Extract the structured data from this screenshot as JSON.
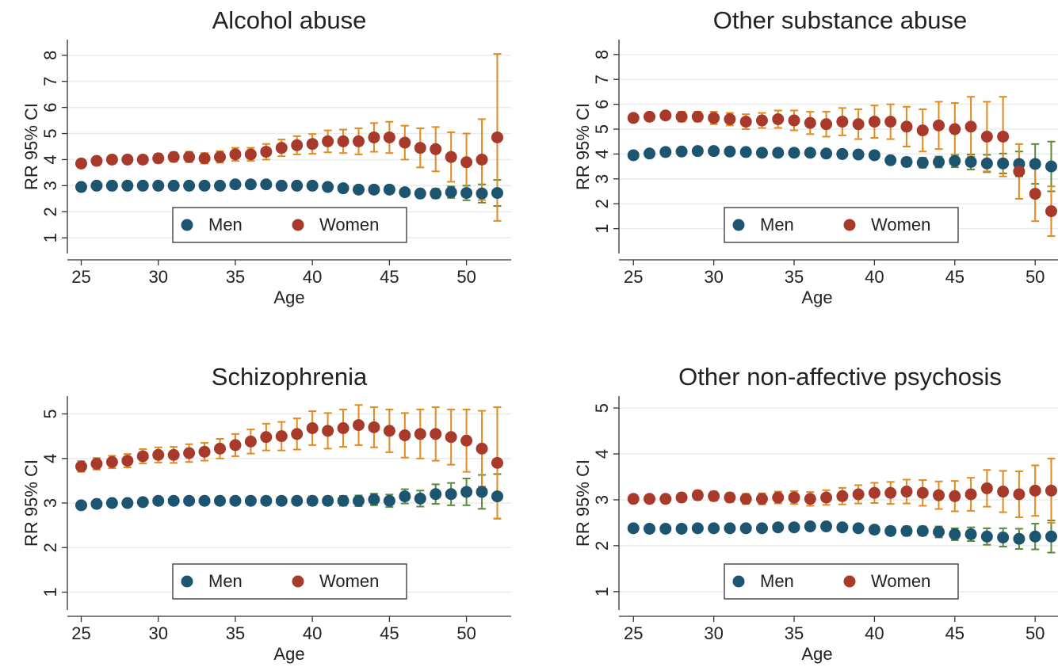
{
  "chart_data": [
    {
      "type": "errorbar",
      "title": "Alcohol abuse",
      "x_label": "Age",
      "y_label": "RR 95% CI",
      "x": [
        25,
        26,
        27,
        28,
        29,
        30,
        31,
        32,
        33,
        34,
        35,
        36,
        37,
        38,
        39,
        40,
        41,
        42,
        43,
        44,
        45,
        46,
        47,
        48,
        49,
        50,
        51,
        52
      ],
      "xlim": [
        24.1,
        52.9
      ],
      "xticks": [
        25,
        30,
        35,
        40,
        45,
        50
      ],
      "ylim": [
        0.4,
        8.6
      ],
      "yticks": [
        1,
        2,
        3,
        4,
        5,
        6,
        7,
        8
      ],
      "grid": true,
      "legend": "bottom",
      "series": [
        {
          "name": "Men",
          "color": "#1d5570",
          "error_color": "#5b8a3c",
          "values": [
            2.95,
            3.0,
            3.0,
            3.0,
            3.0,
            3.0,
            3.0,
            3.0,
            3.0,
            3.0,
            3.05,
            3.05,
            3.05,
            3.0,
            3.0,
            3.0,
            2.95,
            2.9,
            2.85,
            2.85,
            2.85,
            2.75,
            2.7,
            2.7,
            2.75,
            2.72,
            2.7,
            2.72
          ],
          "errors": [
            0.08,
            0.08,
            0.08,
            0.08,
            0.08,
            0.08,
            0.08,
            0.08,
            0.08,
            0.08,
            0.08,
            0.08,
            0.08,
            0.08,
            0.08,
            0.08,
            0.08,
            0.08,
            0.08,
            0.08,
            0.1,
            0.12,
            0.15,
            0.18,
            0.22,
            0.28,
            0.35,
            0.5
          ]
        },
        {
          "name": "Women",
          "color": "#a83a2c",
          "error_color": "#e38a1d",
          "values": [
            3.85,
            3.95,
            4.0,
            4.0,
            4.0,
            4.05,
            4.1,
            4.1,
            4.05,
            4.1,
            4.2,
            4.2,
            4.3,
            4.45,
            4.55,
            4.6,
            4.7,
            4.7,
            4.7,
            4.85,
            4.85,
            4.65,
            4.45,
            4.4,
            4.1,
            3.9,
            4.0,
            4.85
          ],
          "errors": [
            0.15,
            0.15,
            0.15,
            0.15,
            0.15,
            0.17,
            0.18,
            0.2,
            0.2,
            0.22,
            0.25,
            0.25,
            0.3,
            0.32,
            0.35,
            0.38,
            0.42,
            0.45,
            0.5,
            0.55,
            0.6,
            0.65,
            0.75,
            0.85,
            0.95,
            1.1,
            1.55,
            3.2
          ]
        }
      ]
    },
    {
      "type": "errorbar",
      "title": "Other substance abuse",
      "x_label": "Age",
      "y_label": "RR 95% CI",
      "x": [
        25,
        26,
        27,
        28,
        29,
        30,
        31,
        32,
        33,
        34,
        35,
        36,
        37,
        38,
        39,
        40,
        41,
        42,
        43,
        44,
        45,
        46,
        47,
        48,
        49,
        50,
        51
      ],
      "xlim": [
        24.1,
        52.9
      ],
      "xticks": [
        25,
        30,
        35,
        40,
        45,
        50
      ],
      "ylim": [
        0,
        8.6
      ],
      "yticks": [
        1,
        2,
        3,
        4,
        5,
        6,
        7,
        8
      ],
      "grid": true,
      "legend": "bottom",
      "series": [
        {
          "name": "Men",
          "color": "#1d5570",
          "error_color": "#5b8a3c",
          "values": [
            3.95,
            4.02,
            4.08,
            4.1,
            4.12,
            4.12,
            4.1,
            4.08,
            4.05,
            4.05,
            4.05,
            4.05,
            4.02,
            4.0,
            3.98,
            3.95,
            3.75,
            3.68,
            3.65,
            3.68,
            3.72,
            3.68,
            3.62,
            3.62,
            3.6,
            3.6,
            3.5
          ],
          "errors": [
            0.1,
            0.1,
            0.1,
            0.1,
            0.1,
            0.1,
            0.1,
            0.1,
            0.1,
            0.1,
            0.1,
            0.1,
            0.1,
            0.1,
            0.1,
            0.1,
            0.15,
            0.18,
            0.2,
            0.22,
            0.25,
            0.3,
            0.35,
            0.4,
            0.5,
            0.8,
            1.0
          ]
        },
        {
          "name": "Women",
          "color": "#a83a2c",
          "error_color": "#e38a1d",
          "values": [
            5.45,
            5.5,
            5.55,
            5.5,
            5.5,
            5.45,
            5.4,
            5.3,
            5.35,
            5.4,
            5.35,
            5.25,
            5.2,
            5.3,
            5.2,
            5.3,
            5.3,
            5.1,
            4.95,
            5.15,
            5.0,
            5.1,
            4.7,
            4.7,
            3.3,
            2.4,
            1.7
          ],
          "errors": [
            0.15,
            0.15,
            0.15,
            0.2,
            0.2,
            0.25,
            0.25,
            0.3,
            0.3,
            0.35,
            0.4,
            0.45,
            0.5,
            0.55,
            0.6,
            0.65,
            0.7,
            0.8,
            0.85,
            0.95,
            1.05,
            1.2,
            1.4,
            1.6,
            1.1,
            1.1,
            1.0
          ]
        }
      ]
    },
    {
      "type": "errorbar",
      "title": "Schizophrenia",
      "x_label": "Age",
      "y_label": "RR 95% CI",
      "x": [
        25,
        26,
        27,
        28,
        29,
        30,
        31,
        32,
        33,
        34,
        35,
        36,
        37,
        38,
        39,
        40,
        41,
        42,
        43,
        44,
        45,
        46,
        47,
        48,
        49,
        50,
        51,
        52
      ],
      "xlim": [
        24.1,
        52.9
      ],
      "xticks": [
        25,
        30,
        35,
        40,
        45,
        50
      ],
      "ylim": [
        0.6,
        5.4
      ],
      "yticks": [
        1,
        2,
        3,
        4,
        5
      ],
      "grid": true,
      "legend": "bottom",
      "series": [
        {
          "name": "Men",
          "color": "#1d5570",
          "error_color": "#5b8a3c",
          "values": [
            2.95,
            2.98,
            3.0,
            3.0,
            3.02,
            3.05,
            3.05,
            3.05,
            3.05,
            3.05,
            3.05,
            3.05,
            3.05,
            3.05,
            3.05,
            3.05,
            3.05,
            3.05,
            3.05,
            3.08,
            3.05,
            3.15,
            3.1,
            3.2,
            3.2,
            3.25,
            3.25,
            3.15
          ],
          "errors": [
            0.05,
            0.05,
            0.05,
            0.05,
            0.05,
            0.05,
            0.05,
            0.05,
            0.05,
            0.05,
            0.06,
            0.07,
            0.08,
            0.08,
            0.09,
            0.1,
            0.1,
            0.11,
            0.12,
            0.13,
            0.14,
            0.16,
            0.18,
            0.22,
            0.25,
            0.3,
            0.38,
            0.5
          ]
        },
        {
          "name": "Women",
          "color": "#a83a2c",
          "error_color": "#e38a1d",
          "values": [
            3.82,
            3.88,
            3.92,
            3.95,
            4.05,
            4.08,
            4.08,
            4.12,
            4.15,
            4.22,
            4.3,
            4.38,
            4.48,
            4.5,
            4.55,
            4.68,
            4.62,
            4.68,
            4.75,
            4.7,
            4.62,
            4.52,
            4.55,
            4.55,
            4.48,
            4.4,
            4.22,
            3.9
          ],
          "errors": [
            0.12,
            0.13,
            0.14,
            0.15,
            0.16,
            0.17,
            0.18,
            0.2,
            0.2,
            0.22,
            0.25,
            0.27,
            0.3,
            0.32,
            0.35,
            0.38,
            0.4,
            0.42,
            0.45,
            0.45,
            0.48,
            0.5,
            0.55,
            0.6,
            0.62,
            0.7,
            0.85,
            1.25
          ]
        }
      ]
    },
    {
      "type": "errorbar",
      "title": "Other non-affective psychosis",
      "x_label": "Age",
      "y_label": "RR 95% CI",
      "x": [
        25,
        26,
        27,
        28,
        29,
        30,
        31,
        32,
        33,
        34,
        35,
        36,
        37,
        38,
        39,
        40,
        41,
        42,
        43,
        44,
        45,
        46,
        47,
        48,
        49,
        50,
        51
      ],
      "xlim": [
        24.1,
        52.9
      ],
      "xticks": [
        25,
        30,
        35,
        40,
        45,
        50
      ],
      "ylim": [
        0.6,
        5.26
      ],
      "yticks": [
        1,
        2,
        3,
        4,
        5
      ],
      "grid": true,
      "legend": "bottom",
      "series": [
        {
          "name": "Men",
          "color": "#1d5570",
          "error_color": "#5b8a3c",
          "values": [
            2.38,
            2.37,
            2.37,
            2.37,
            2.38,
            2.38,
            2.38,
            2.38,
            2.38,
            2.4,
            2.4,
            2.42,
            2.42,
            2.4,
            2.38,
            2.35,
            2.32,
            2.32,
            2.32,
            2.3,
            2.25,
            2.25,
            2.2,
            2.18,
            2.15,
            2.2,
            2.2
          ],
          "errors": [
            0.05,
            0.05,
            0.05,
            0.05,
            0.05,
            0.05,
            0.05,
            0.05,
            0.05,
            0.05,
            0.05,
            0.05,
            0.06,
            0.07,
            0.08,
            0.08,
            0.09,
            0.1,
            0.1,
            0.12,
            0.13,
            0.15,
            0.18,
            0.2,
            0.22,
            0.28,
            0.35
          ]
        },
        {
          "name": "Women",
          "color": "#a83a2c",
          "error_color": "#e38a1d",
          "values": [
            3.02,
            3.02,
            3.02,
            3.05,
            3.1,
            3.08,
            3.05,
            3.02,
            3.02,
            3.05,
            3.05,
            3.02,
            3.05,
            3.08,
            3.12,
            3.15,
            3.15,
            3.18,
            3.15,
            3.1,
            3.08,
            3.12,
            3.25,
            3.18,
            3.12,
            3.2,
            3.2
          ],
          "errors": [
            0.08,
            0.08,
            0.08,
            0.09,
            0.1,
            0.1,
            0.1,
            0.11,
            0.12,
            0.13,
            0.14,
            0.15,
            0.16,
            0.18,
            0.2,
            0.22,
            0.24,
            0.26,
            0.28,
            0.3,
            0.33,
            0.36,
            0.4,
            0.45,
            0.5,
            0.55,
            0.7
          ]
        }
      ]
    }
  ]
}
